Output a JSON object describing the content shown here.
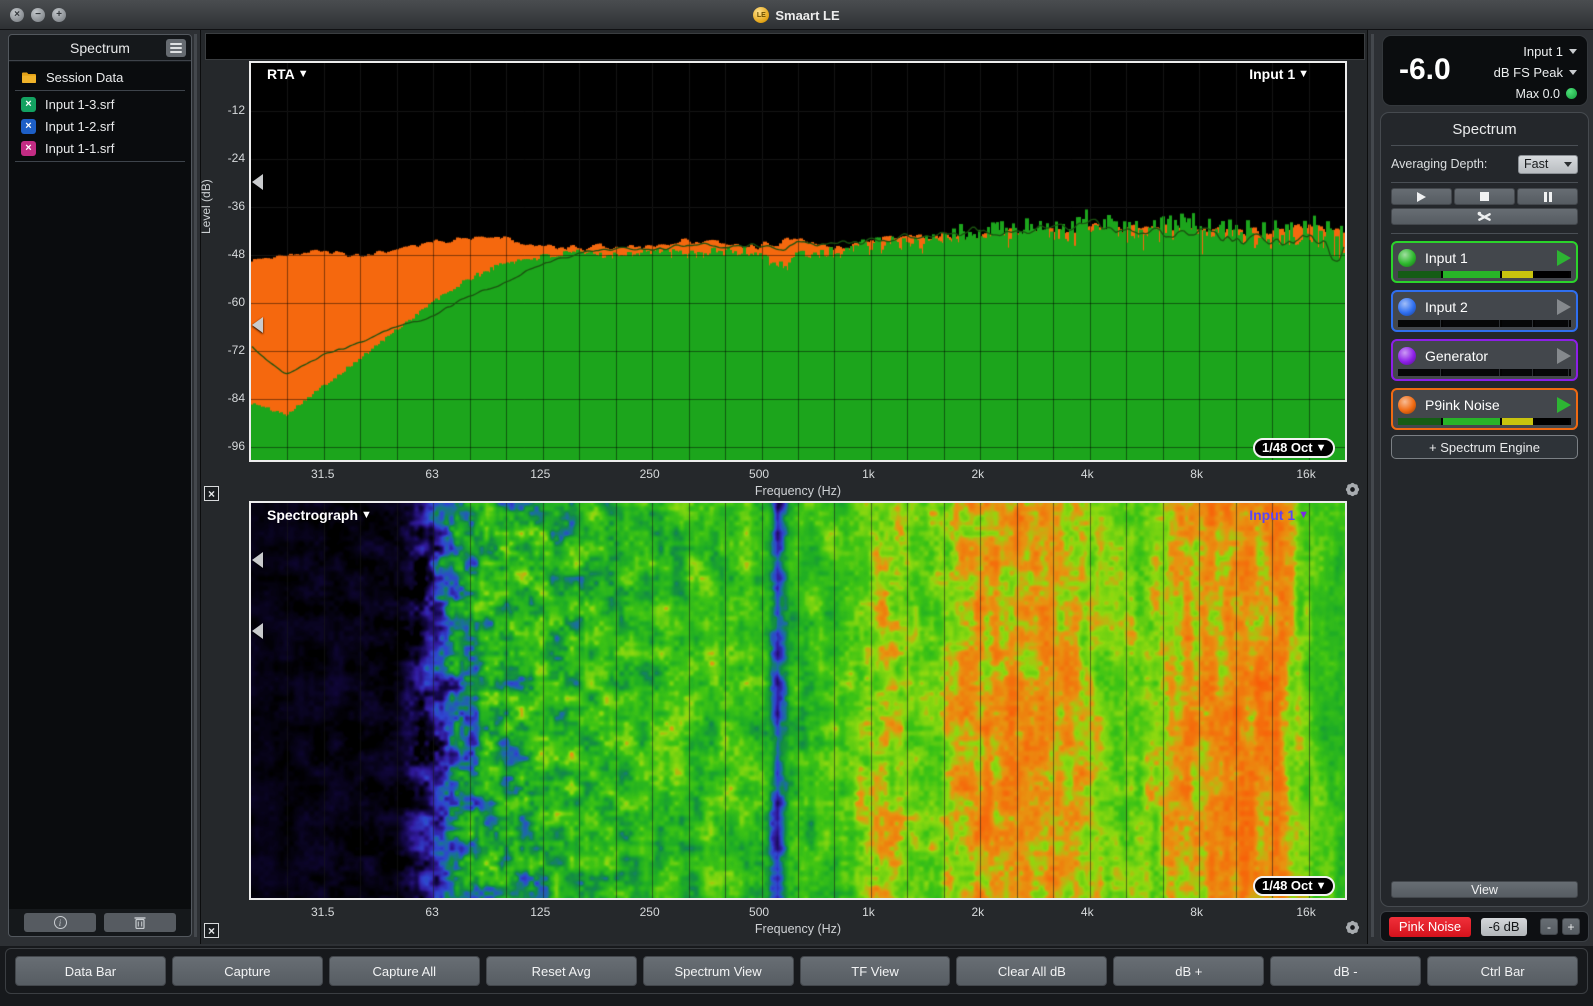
{
  "window": {
    "title": "Smaart LE",
    "traffic_lights": [
      "close",
      "minimize",
      "zoom"
    ]
  },
  "sidebar": {
    "title": "Spectrum",
    "items": [
      {
        "label": "Session Data",
        "icon": "folder",
        "color": "#e2a117"
      },
      {
        "label": "Input 1-3.srf",
        "icon": "x-badge",
        "color": "#13a261"
      },
      {
        "label": "Input 1-2.srf",
        "icon": "x-badge",
        "color": "#1d5fc6"
      },
      {
        "label": "Input 1-1.srf",
        "icon": "x-badge",
        "color": "#c32c84"
      }
    ]
  },
  "rta": {
    "title": "RTA",
    "source": "Input 1",
    "resolution": "1/48 Oct"
  },
  "spectrograph": {
    "title": "Spectrograph",
    "source": "Input 1",
    "resolution": "1/48 Oct",
    "source_color": "#5b45f5"
  },
  "meter": {
    "channel": "Input 1",
    "value": "-6.0",
    "unit": "dB FS Peak",
    "max": "Max 0.0"
  },
  "spectrum_panel": {
    "title": "Spectrum",
    "averaging_label": "Averaging Depth:",
    "averaging_value": "Fast",
    "transport": [
      "play",
      "stop",
      "pause"
    ],
    "channels": [
      {
        "label": "Input 1",
        "ball": "#2db82d",
        "border": "#2bd42b",
        "play": "active",
        "meter": "lit"
      },
      {
        "label": "Input 2",
        "ball": "#2f6ff0",
        "border": "#2f6ff0",
        "play": "idle",
        "meter": "off"
      },
      {
        "label": "Generator",
        "ball": "#8d1fe8",
        "border": "#8d1fe8",
        "play": "idle",
        "meter": "off"
      },
      {
        "label": "P9ink Noise",
        "ball": "#f06a12",
        "border": "#f06a12",
        "play": "active",
        "meter": "lit"
      }
    ],
    "add_engine_label": "+ Spectrum Engine",
    "view_button": "View",
    "generator": {
      "pink_noise_label": "Pink Noise",
      "level_label": "-6 dB",
      "dec_label": "-",
      "inc_label": "+"
    }
  },
  "control_bar": {
    "buttons": [
      "Data Bar",
      "Capture",
      "Capture All",
      "Reset Avg",
      "Spectrum View",
      "TF View",
      "Clear All dB",
      "dB +",
      "dB -",
      "Ctrl Bar"
    ]
  },
  "chart_data": [
    {
      "type": "area",
      "title": "RTA",
      "source": "Input 1",
      "resolution": "1/48 Oct",
      "x_axis": {
        "label": "Frequency (Hz)",
        "scale": "log",
        "min_hz": 20,
        "max_hz": 20480,
        "ticks": [
          {
            "label": "31.5",
            "hz": 31.5
          },
          {
            "label": "63",
            "hz": 63
          },
          {
            "label": "125",
            "hz": 125
          },
          {
            "label": "250",
            "hz": 250
          },
          {
            "label": "500",
            "hz": 500
          },
          {
            "label": "1k",
            "hz": 1000
          },
          {
            "label": "2k",
            "hz": 2000
          },
          {
            "label": "4k",
            "hz": 4000
          },
          {
            "label": "8k",
            "hz": 8000
          },
          {
            "label": "16k",
            "hz": 16000
          }
        ]
      },
      "y_axis": {
        "label": "Level (dB)",
        "ticks": [
          -12,
          -24,
          -36,
          -48,
          -60,
          -72,
          -84,
          -96
        ],
        "min": -99.25,
        "max": 0
      },
      "grid": {
        "minor_per_octave": 3,
        "db_step": 12
      },
      "series": [
        {
          "name": "pink-noise-fill",
          "color": "#f5680e",
          "jitter_db": 1.2,
          "points_hz_db": [
            [
              20,
              -49
            ],
            [
              25,
              -48
            ],
            [
              31.5,
              -47
            ],
            [
              40,
              -48.5
            ],
            [
              50,
              -47
            ],
            [
              63,
              -45
            ],
            [
              80,
              -43.5
            ],
            [
              100,
              -43.5
            ],
            [
              125,
              -46
            ],
            [
              160,
              -46.5
            ],
            [
              200,
              -46
            ],
            [
              250,
              -46
            ],
            [
              315,
              -44.5
            ],
            [
              400,
              -45.5
            ],
            [
              500,
              -46
            ],
            [
              590,
              -44.5
            ],
            [
              630,
              -44
            ],
            [
              800,
              -46
            ],
            [
              1000,
              -44.5
            ],
            [
              1250,
              -43.5
            ],
            [
              1600,
              -43
            ],
            [
              2000,
              -43.5
            ],
            [
              2500,
              -42
            ],
            [
              3150,
              -42.5
            ],
            [
              4000,
              -41
            ],
            [
              5000,
              -41.5
            ],
            [
              6300,
              -41
            ],
            [
              8000,
              -41.5
            ],
            [
              10000,
              -42
            ],
            [
              12500,
              -42.5
            ],
            [
              16000,
              -41
            ],
            [
              20000,
              -42
            ]
          ]
        },
        {
          "name": "input1-fill",
          "color": "#1ca51c",
          "jitter_db_low": 0.4,
          "jitter_db_high": 4.6,
          "points_hz_db": [
            [
              20,
              -85
            ],
            [
              25,
              -88
            ],
            [
              31.5,
              -81
            ],
            [
              40,
              -74
            ],
            [
              50,
              -67
            ],
            [
              63,
              -60
            ],
            [
              80,
              -54
            ],
            [
              100,
              -50
            ],
            [
              125,
              -48.5
            ],
            [
              160,
              -47.5
            ],
            [
              200,
              -48
            ],
            [
              250,
              -47
            ],
            [
              315,
              -48
            ],
            [
              400,
              -47
            ],
            [
              500,
              -47.5
            ],
            [
              590,
              -51.5
            ],
            [
              630,
              -48
            ],
            [
              800,
              -47.5
            ],
            [
              1000,
              -45.5
            ],
            [
              1250,
              -45
            ],
            [
              1600,
              -43.5
            ],
            [
              2000,
              -41.5
            ],
            [
              2500,
              -41
            ],
            [
              3150,
              -42
            ],
            [
              4000,
              -39.5
            ],
            [
              5000,
              -40.5
            ],
            [
              6300,
              -41.5
            ],
            [
              8000,
              -40.5
            ],
            [
              10000,
              -42.5
            ],
            [
              12500,
              -43.5
            ],
            [
              16000,
              -41.5
            ],
            [
              20000,
              -45
            ]
          ]
        },
        {
          "name": "average-trace",
          "color": "#1b5210",
          "points_hz_db": [
            [
              20,
              -71
            ],
            [
              25,
              -78
            ],
            [
              31.5,
              -73
            ],
            [
              40,
              -70
            ],
            [
              50,
              -66
            ],
            [
              63,
              -63.5
            ],
            [
              80,
              -58
            ],
            [
              100,
              -55
            ],
            [
              125,
              -50.5
            ],
            [
              160,
              -47.5
            ],
            [
              200,
              -46.5
            ],
            [
              250,
              -47
            ],
            [
              315,
              -45.5
            ],
            [
              400,
              -46
            ],
            [
              500,
              -45.5
            ],
            [
              590,
              -46.5
            ],
            [
              630,
              -44.5
            ],
            [
              800,
              -45.5
            ],
            [
              1000,
              -44.5
            ],
            [
              1250,
              -43.5
            ],
            [
              1600,
              -42.5
            ],
            [
              2000,
              -42
            ],
            [
              2500,
              -41.5
            ],
            [
              3150,
              -42
            ],
            [
              4000,
              -40
            ],
            [
              5000,
              -42
            ],
            [
              6300,
              -43
            ],
            [
              8000,
              -42
            ],
            [
              10000,
              -44.5
            ],
            [
              12500,
              -45.5
            ],
            [
              16000,
              -43.5
            ],
            [
              20000,
              -49
            ]
          ]
        }
      ]
    },
    {
      "type": "heatmap",
      "title": "Spectrograph",
      "source": "Input 1",
      "resolution": "1/48 Oct",
      "x_axis": {
        "label": "Frequency (Hz)",
        "scale": "log",
        "min_hz": 20,
        "max_hz": 20480,
        "ticks": [
          {
            "label": "31.5",
            "hz": 31.5
          },
          {
            "label": "63",
            "hz": 63
          },
          {
            "label": "125",
            "hz": 125
          },
          {
            "label": "250",
            "hz": 250
          },
          {
            "label": "500",
            "hz": 500
          },
          {
            "label": "1k",
            "hz": 1000
          },
          {
            "label": "2k",
            "hz": 2000
          },
          {
            "label": "4k",
            "hz": 4000
          },
          {
            "label": "8k",
            "hz": 8000
          },
          {
            "label": "16k",
            "hz": 16000
          }
        ]
      },
      "colormap": [
        [
          0,
          "#000000"
        ],
        [
          0.08,
          "#14084a"
        ],
        [
          0.16,
          "#311b9e"
        ],
        [
          0.24,
          "#2f46d0"
        ],
        [
          0.31,
          "#1b6ea0"
        ],
        [
          0.37,
          "#128a46"
        ],
        [
          0.46,
          "#1fae24"
        ],
        [
          0.56,
          "#3ec414"
        ],
        [
          0.66,
          "#8ed90f"
        ],
        [
          0.72,
          "#e89410"
        ],
        [
          0.8,
          "#f4700c"
        ],
        [
          0.9,
          "#f95506"
        ],
        [
          1,
          "#ff4800"
        ]
      ],
      "intensity_profile_oct_value": [
        [
          0,
          0.02
        ],
        [
          1.35,
          0.02
        ],
        [
          1.55,
          0.1
        ],
        [
          1.8,
          0.3
        ],
        [
          2.1,
          0.44
        ],
        [
          2.5,
          0.47
        ],
        [
          3,
          0.5
        ],
        [
          3.6,
          0.52
        ],
        [
          4.2,
          0.54
        ],
        [
          4.6,
          0.55
        ],
        [
          4.72,
          0.46
        ],
        [
          4.81,
          0.17
        ],
        [
          4.92,
          0.46
        ],
        [
          5.2,
          0.54
        ],
        [
          5.5,
          0.58
        ],
        [
          5.75,
          0.68
        ],
        [
          6,
          0.64
        ],
        [
          6.2,
          0.58
        ],
        [
          6.45,
          0.68
        ],
        [
          6.8,
          0.72
        ],
        [
          7.2,
          0.73
        ],
        [
          7.6,
          0.68
        ],
        [
          7.9,
          0.6
        ],
        [
          8.2,
          0.64
        ],
        [
          8.6,
          0.72
        ],
        [
          9,
          0.75
        ],
        [
          9.4,
          0.74
        ],
        [
          9.6,
          0.62
        ],
        [
          9.8,
          0.54
        ],
        [
          10,
          0.52
        ]
      ],
      "noise_amp_oct_value": [
        [
          0,
          0.02
        ],
        [
          1.35,
          0.04
        ],
        [
          1.6,
          0.16
        ],
        [
          1.9,
          0.24
        ],
        [
          2.6,
          0.22
        ],
        [
          3.5,
          0.16
        ],
        [
          4.5,
          0.14
        ],
        [
          5.5,
          0.12
        ],
        [
          7,
          0.1
        ],
        [
          10,
          0.1
        ]
      ]
    }
  ]
}
